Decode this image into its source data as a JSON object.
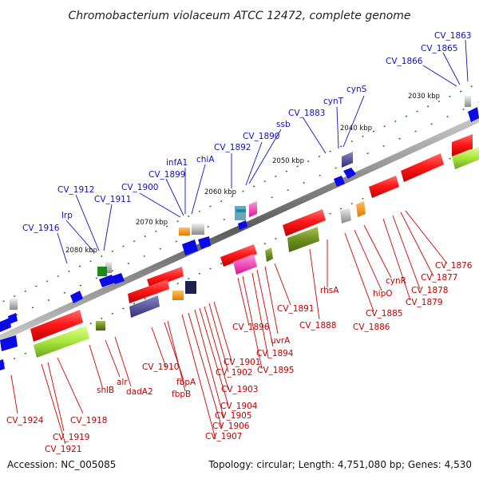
{
  "title": "Chromobacterium violaceum ATCC 12472, complete genome",
  "footer": {
    "accession": "Accession: NC_005085",
    "topology": "Topology: circular; Length: 4,751,080 bp; Genes: 4,530"
  },
  "ticks": [
    "2030 kbp",
    "2040 kbp",
    "2050 kbp",
    "2060 kbp",
    "2070 kbp",
    "2080 kbp"
  ],
  "labels_top": [
    "CV_1863",
    "CV_1865",
    "CV_1866",
    "cynS",
    "cynT",
    "CV_1883",
    "ssb",
    "CV_1890",
    "CV_1892",
    "chiA",
    "infA1",
    "CV_1899",
    "CV_1900",
    "CV_1912",
    "CV_1911",
    "lrp",
    "CV_1916"
  ],
  "labels_bottom": [
    "CV_1876",
    "CV_1877",
    "cynR",
    "CV_1878",
    "CV_1879",
    "hipO",
    "CV_1885",
    "rhsA",
    "CV_1886",
    "CV_1891",
    "CV_1888",
    "uvrA",
    "CV_1894",
    "CV_1895",
    "CV_1896",
    "CV_1901",
    "CV_1902",
    "CV_1903",
    "CV_1904",
    "CV_1905",
    "CV_1906",
    "CV_1907",
    "CV_1910",
    "fbpA",
    "fbpB",
    "alr",
    "dadA2",
    "shlB",
    "CV_1918",
    "CV_1919",
    "CV_1921",
    "CV_1924"
  ],
  "colors": {
    "forward_gene": "#e80000",
    "feature_blue": "#0a0ae6",
    "backbone": "#808080",
    "label_top": "#1010c0",
    "label_bottom": "#c00000",
    "green_feature": "#7ad62a",
    "tick": "#1a7a1a"
  }
}
